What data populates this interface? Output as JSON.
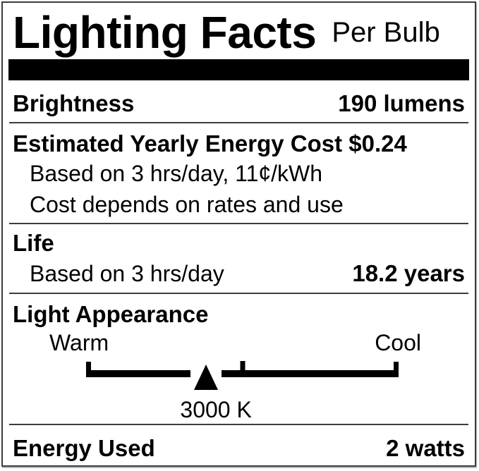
{
  "header": {
    "title": "Lighting Facts",
    "subtitle": "Per Bulb"
  },
  "brightness": {
    "label": "Brightness",
    "value": "190 lumens"
  },
  "energy_cost": {
    "title": "Estimated Yearly Energy Cost $0.24",
    "notes": [
      "Based on 3 hrs/day, 11¢/kWh",
      "Cost depends on rates and use"
    ]
  },
  "life": {
    "label": "Life",
    "note": "Based on 3 hrs/day",
    "value": "18.2 years"
  },
  "light_appearance": {
    "label": "Light Appearance",
    "warm": "Warm",
    "cool": "Cool",
    "temperature": "3000 K"
  },
  "energy_used": {
    "label": "Energy Used",
    "value": "2 watts"
  },
  "scale": {
    "marker_position_pct": 38.4,
    "mid_tick_pct": 50
  },
  "colors": {
    "text": "#000000",
    "rule": "#3c3c3c",
    "background": "#ffffff"
  }
}
